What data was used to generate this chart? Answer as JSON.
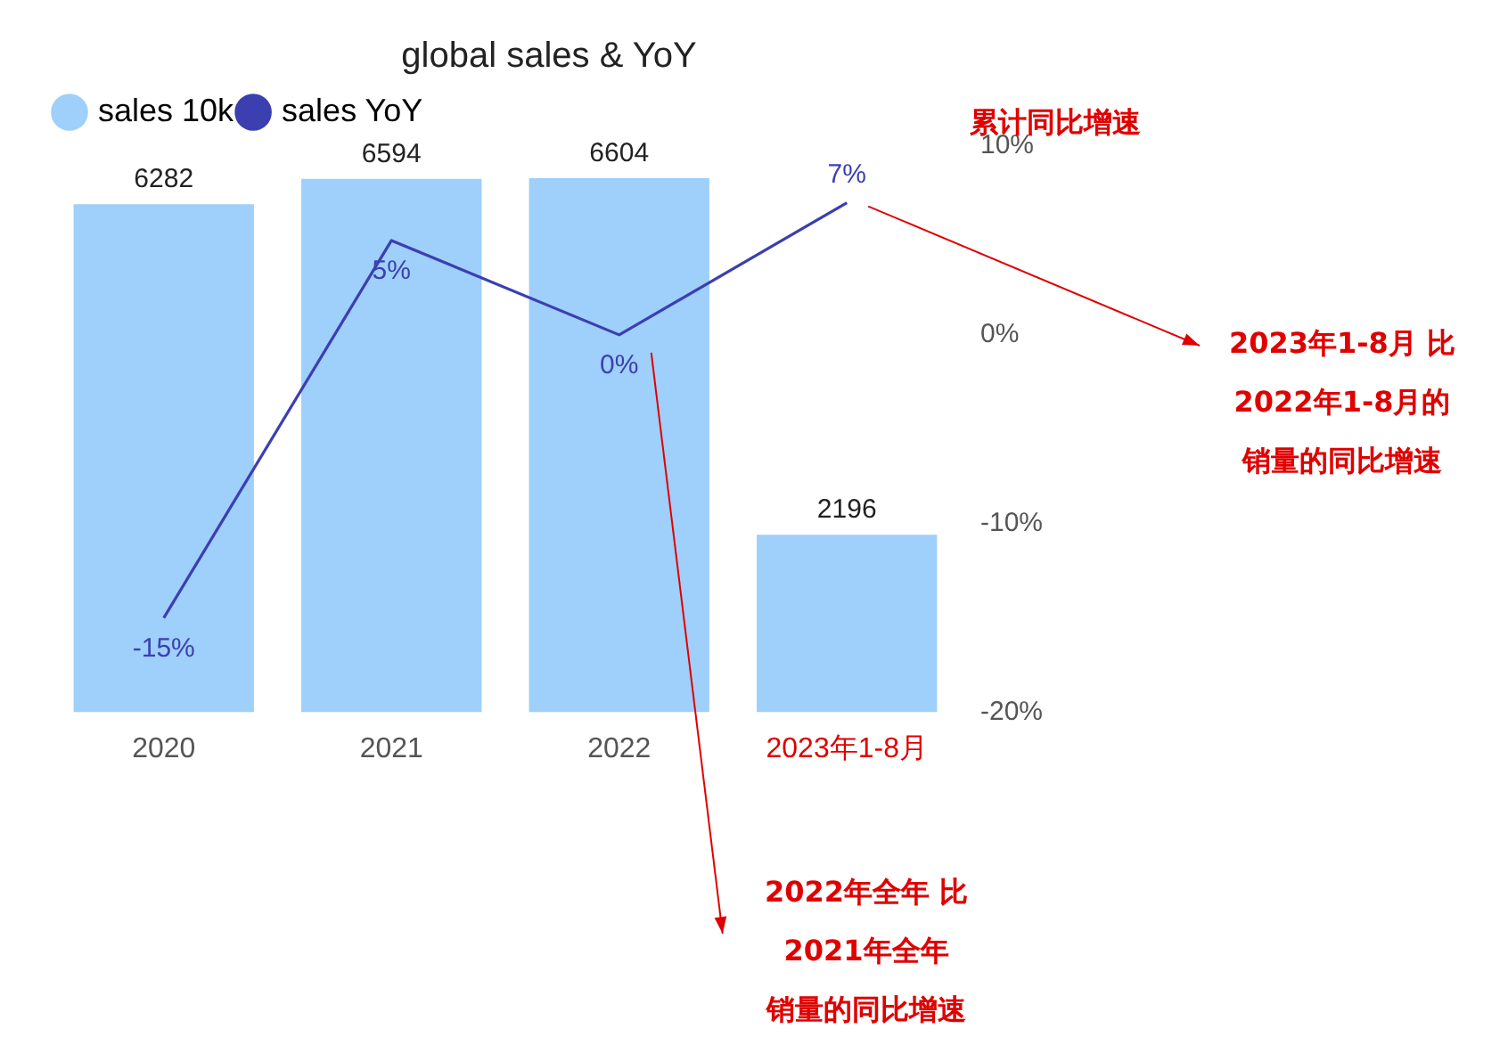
{
  "chart_data": {
    "type": "bar",
    "title": "global sales & YoY",
    "categories": [
      "2020",
      "2021",
      "2022",
      "2023年1-8月"
    ],
    "series": [
      {
        "name": "sales 10k",
        "color": "#9fcffb",
        "values": [
          6282,
          6594,
          6604,
          2196
        ],
        "value_labels": [
          "6282",
          "6594",
          "6604",
          "2196"
        ]
      },
      {
        "name": "sales YoY",
        "type": "line",
        "axis": "y2",
        "color": "#3b3fb0",
        "values": [
          -15,
          5,
          0,
          7
        ],
        "value_labels": [
          "-15%",
          "5%",
          "0%",
          "7%"
        ]
      }
    ],
    "y2lim": [
      -20,
      10
    ],
    "y2ticks": [
      {
        "value": 10,
        "label": "10%"
      },
      {
        "value": 0,
        "label": "0%"
      },
      {
        "value": -10,
        "label": "-10%"
      },
      {
        "value": -20,
        "label": "-20%"
      }
    ],
    "grid": false,
    "legend": "top left",
    "marker": "none",
    "line_style": "solid",
    "annotations": [
      "累计同比增速",
      "2023年1-8月 比2022年1-8月的销量的同比增速",
      "2022年全年 比2021年全年销量的同比增速"
    ]
  }
}
